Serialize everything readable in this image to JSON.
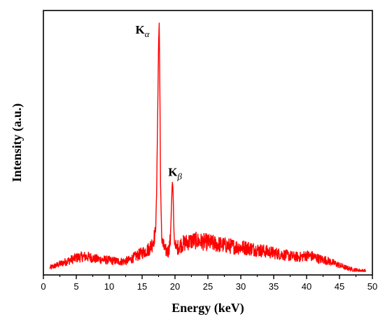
{
  "chart_data": {
    "type": "line",
    "xlabel": "Energy (keV)",
    "ylabel": "Intensity (a.u.)",
    "xlim": [
      0,
      50
    ],
    "ylim": [
      0,
      1
    ],
    "xticks": [
      0,
      5,
      10,
      15,
      20,
      25,
      30,
      35,
      40,
      45,
      50
    ],
    "y_tick_labels_shown": false,
    "grid": false,
    "legend": "none",
    "series": [
      {
        "color": "#ff0000",
        "x": [
          1.0,
          2.0,
          3.0,
          4.0,
          5.0,
          6.0,
          7.0,
          8.0,
          9.0,
          10.0,
          11.0,
          12.0,
          13.0,
          14.0,
          15.0,
          16.0,
          16.5,
          17.0,
          17.2,
          17.4,
          17.5,
          17.6,
          17.7,
          17.8,
          18.0,
          18.5,
          19.0,
          19.3,
          19.5,
          19.6,
          19.7,
          19.8,
          19.9,
          20.2,
          20.5,
          21.0,
          22.0,
          23.0,
          24.0,
          25.0,
          26.0,
          27.0,
          28.0,
          29.0,
          30.0,
          31.0,
          32.0,
          33.0,
          34.0,
          35.0,
          36.0,
          37.0,
          38.0,
          39.0,
          40.0,
          41.0,
          42.0,
          43.0,
          44.0,
          45.0,
          46.0,
          47.0,
          48.0,
          49.0
        ],
        "y": [
          0.015,
          0.025,
          0.035,
          0.045,
          0.055,
          0.06,
          0.058,
          0.05,
          0.048,
          0.045,
          0.042,
          0.04,
          0.045,
          0.06,
          0.075,
          0.09,
          0.11,
          0.15,
          0.3,
          0.7,
          0.92,
          1.0,
          0.75,
          0.35,
          0.12,
          0.085,
          0.08,
          0.13,
          0.3,
          0.36,
          0.33,
          0.2,
          0.12,
          0.09,
          0.1,
          0.11,
          0.12,
          0.125,
          0.12,
          0.118,
          0.112,
          0.108,
          0.104,
          0.1,
          0.098,
          0.095,
          0.09,
          0.085,
          0.08,
          0.075,
          0.07,
          0.065,
          0.06,
          0.058,
          0.065,
          0.06,
          0.05,
          0.045,
          0.035,
          0.025,
          0.015,
          0.008,
          0.004,
          0.002
        ]
      }
    ],
    "annotations": [
      {
        "id": "kalpha",
        "main": "K",
        "sub": "α",
        "x": 17.6,
        "y": 1.0
      },
      {
        "id": "kbeta",
        "main": "K",
        "sub": "β",
        "x": 19.6,
        "y": 0.36
      }
    ]
  },
  "colors": {
    "line": "#ff0000",
    "axis": "#000000"
  }
}
